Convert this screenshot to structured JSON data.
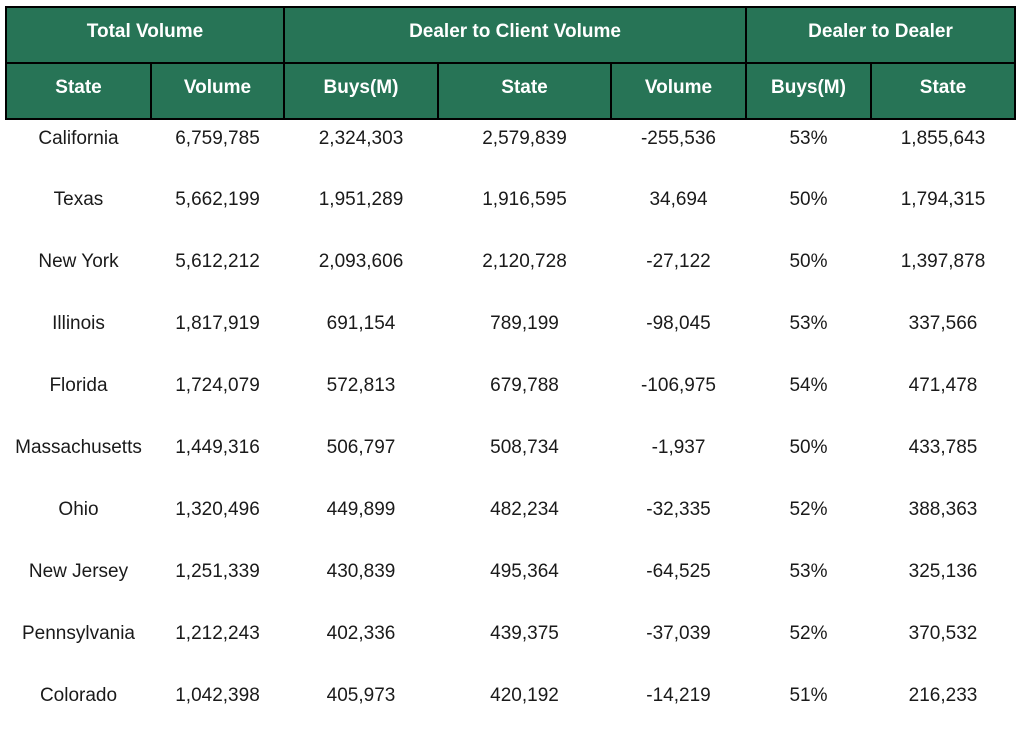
{
  "table": {
    "group_headers": [
      {
        "label": "Total Volume",
        "span": 2
      },
      {
        "label": "Dealer to Client Volume",
        "span": 3
      },
      {
        "label": "Dealer to Dealer",
        "span": 2
      }
    ],
    "column_headers": [
      "State",
      "Volume",
      "Buys(M)",
      "State",
      "Volume",
      "Buys(M)",
      "State"
    ],
    "rows": [
      [
        "California",
        "6,759,785",
        "2,324,303",
        "2,579,839",
        "-255,536",
        "53%",
        "1,855,643"
      ],
      [
        "Texas",
        "5,662,199",
        "1,951,289",
        "1,916,595",
        "34,694",
        "50%",
        "1,794,315"
      ],
      [
        "New York",
        "5,612,212",
        "2,093,606",
        "2,120,728",
        "-27,122",
        "50%",
        "1,397,878"
      ],
      [
        "Illinois",
        "1,817,919",
        "691,154",
        "789,199",
        "-98,045",
        "53%",
        "337,566"
      ],
      [
        "Florida",
        "1,724,079",
        "572,813",
        "679,788",
        "-106,975",
        "54%",
        "471,478"
      ],
      [
        "Massachusetts",
        "1,449,316",
        "506,797",
        "508,734",
        "-1,937",
        "50%",
        "433,785"
      ],
      [
        "Ohio",
        "1,320,496",
        "449,899",
        "482,234",
        "-32,335",
        "52%",
        "388,363"
      ],
      [
        "New Jersey",
        "1,251,339",
        "430,839",
        "495,364",
        "-64,525",
        "53%",
        "325,136"
      ],
      [
        "Pennsylvania",
        "1,212,243",
        "402,336",
        "439,375",
        "-37,039",
        "52%",
        "370,532"
      ],
      [
        "Colorado",
        "1,042,398",
        "405,973",
        "420,192",
        "-14,219",
        "51%",
        "216,233"
      ]
    ]
  },
  "colors": {
    "header_bg": "#277456",
    "header_text": "#ffffff",
    "border": "#000000"
  }
}
